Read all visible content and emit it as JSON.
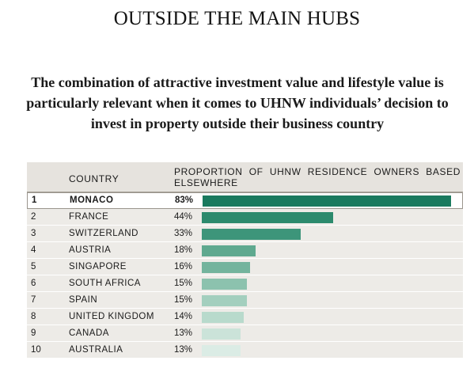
{
  "title": "OUTSIDE THE MAIN HUBS",
  "subtitle": "The combination of attractive investment value and lifestyle value is particularly relevant when it comes to UHNW individuals’ decision to invest in property outside their business country",
  "table": {
    "header_country": "COUNTRY",
    "header_proportion": "PROPORTION OF UHNW RESIDENCE OWNERS BASED ELSEWHERE"
  },
  "chart_data": {
    "type": "bar",
    "orientation": "horizontal",
    "title": "OUTSIDE THE MAIN HUBS",
    "ylabel": "PROPORTION OF UHNW RESIDENCE OWNERS BASED ELSEWHERE",
    "xlim": [
      0,
      100
    ],
    "highlight_rank": 1,
    "rows": [
      {
        "rank": "1",
        "country": "MONACO",
        "value": 83,
        "label": "83%",
        "color": "#1a7a5e"
      },
      {
        "rank": "2",
        "country": "FRANCE",
        "value": 44,
        "label": "44%",
        "color": "#2c8a6d"
      },
      {
        "rank": "3",
        "country": "SWITZERLAND",
        "value": 33,
        "label": "33%",
        "color": "#3d957a"
      },
      {
        "rank": "4",
        "country": "AUSTRIA",
        "value": 18,
        "label": "18%",
        "color": "#5fa98f"
      },
      {
        "rank": "5",
        "country": "SINGAPORE",
        "value": 16,
        "label": "16%",
        "color": "#73b49d"
      },
      {
        "rank": "6",
        "country": "SOUTH AFRICA",
        "value": 15,
        "label": "15%",
        "color": "#8cc2ae"
      },
      {
        "rank": "7",
        "country": "SPAIN",
        "value": 15,
        "label": "15%",
        "color": "#a3cfbe"
      },
      {
        "rank": "8",
        "country": "UNITED KINGDOM",
        "value": 14,
        "label": "14%",
        "color": "#b8dacc"
      },
      {
        "rank": "9",
        "country": "CANADA",
        "value": 13,
        "label": "13%",
        "color": "#cbe3d9"
      },
      {
        "rank": "10",
        "country": "AUSTRALIA",
        "value": 13,
        "label": "13%",
        "color": "#dbece5"
      }
    ]
  }
}
